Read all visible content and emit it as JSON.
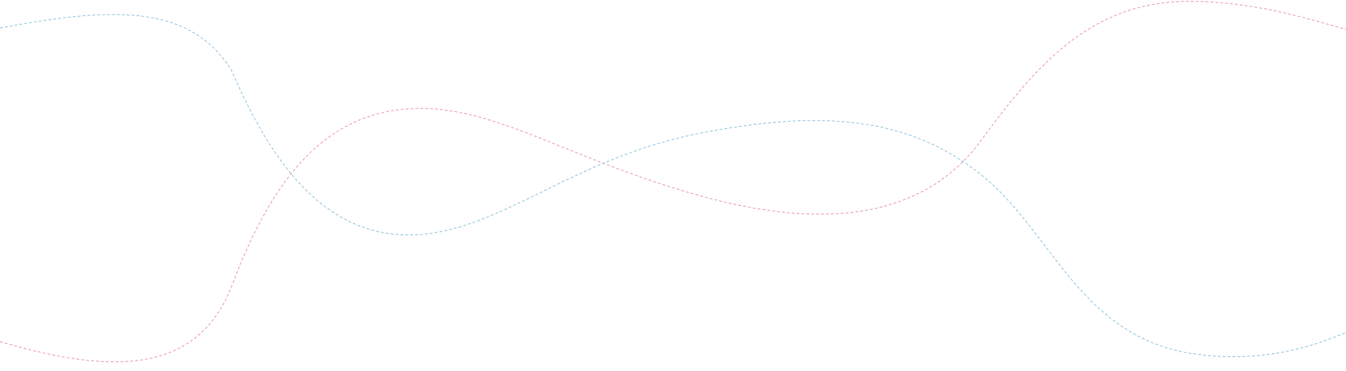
{
  "colors": {
    "background": "#ffffff",
    "wave_blue": "#7fbcd8",
    "wave_pink": "#e68aa6"
  }
}
